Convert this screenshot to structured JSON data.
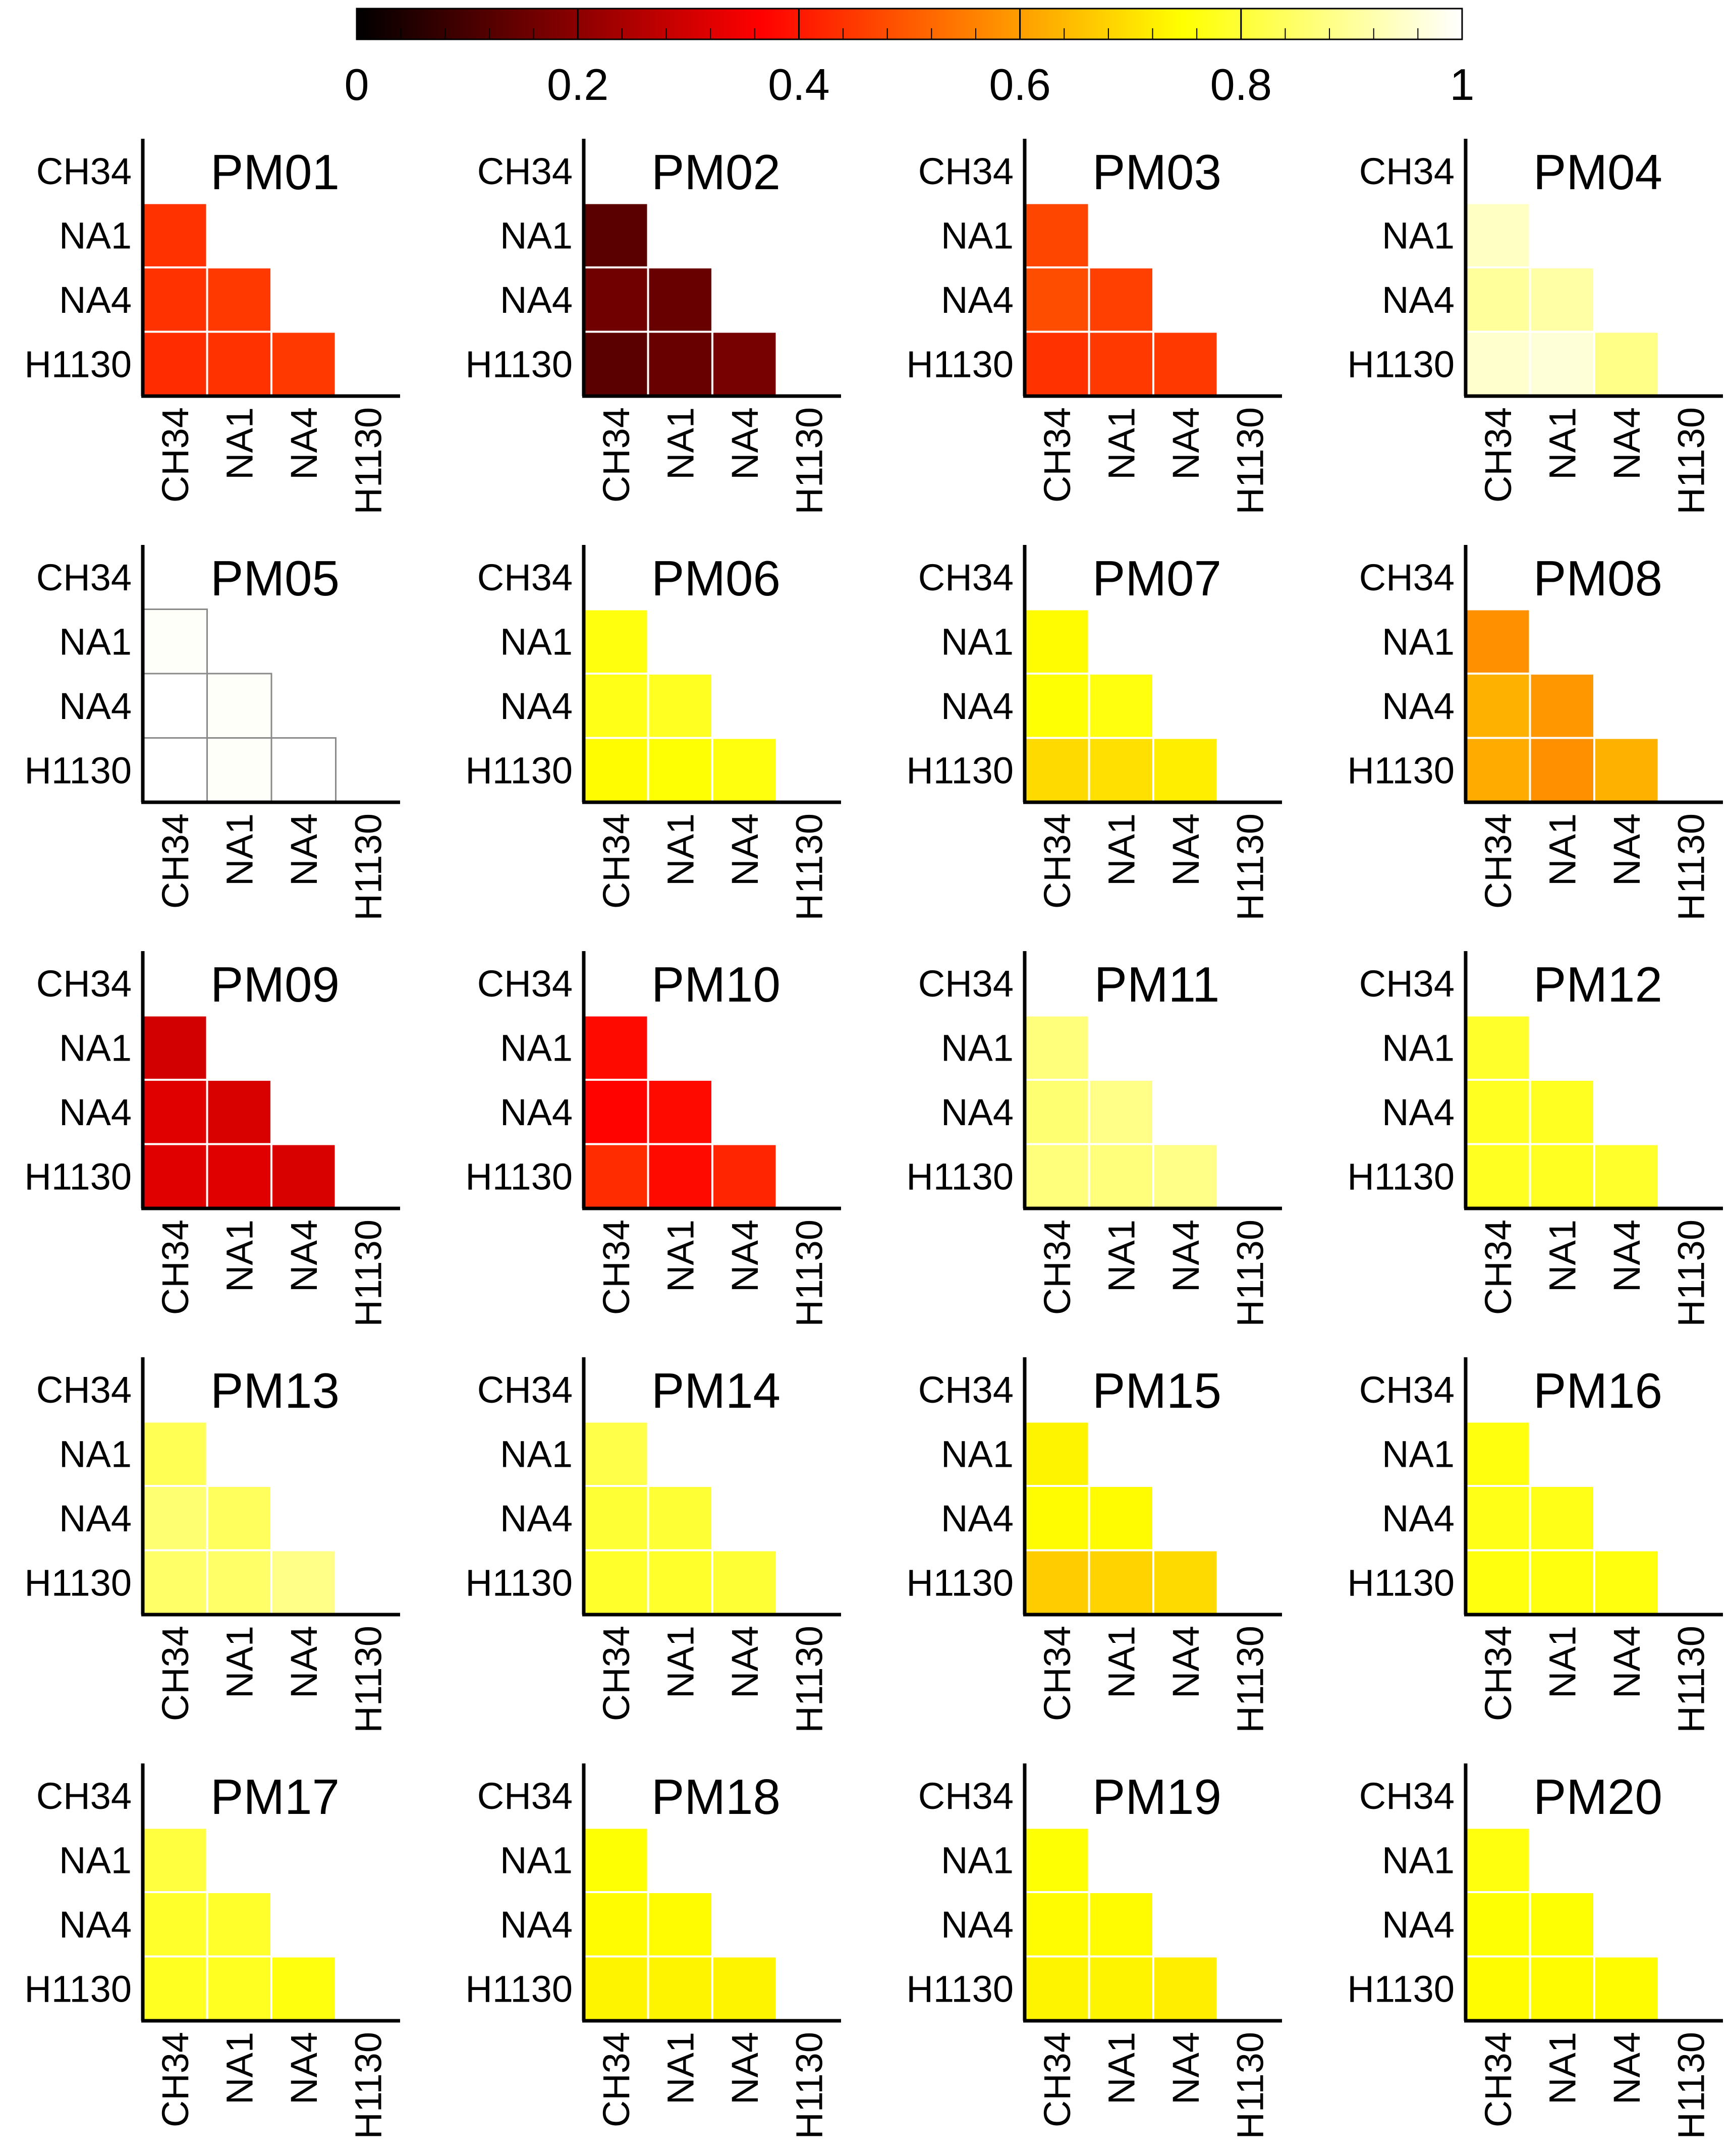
{
  "chart_data": {
    "type": "heatmap",
    "layout": "small-multiples grid, 5 rows x 4 columns, lower-triangular heatmaps",
    "colorbar": {
      "colormap": "hot (black - red - orange - yellow - white)",
      "range": [
        0,
        1
      ],
      "tick_labels": [
        "0",
        "0.2",
        "0.4",
        "0.6",
        "0.8",
        "1"
      ],
      "tick_values": [
        0,
        0.2,
        0.4,
        0.6,
        0.8,
        1
      ],
      "placement": "top-center"
    },
    "row_labels": [
      "CH34",
      "NA1",
      "NA4",
      "H1130"
    ],
    "col_labels": [
      "CH34",
      "NA1",
      "NA4",
      "H1130"
    ],
    "cell_order": "rows NA1, NA4, H1130; lower triangle [NA1-CH34], [NA4-CH34, NA4-NA1], [H1130-CH34, H1130-NA1, H1130-NA4]",
    "panels": [
      {
        "title": "PM01",
        "values": [
          [
            0.44
          ],
          [
            0.44,
            0.45
          ],
          [
            0.43,
            0.44,
            0.45
          ]
        ]
      },
      {
        "title": "PM02",
        "values": [
          [
            0.13
          ],
          [
            0.16,
            0.15
          ],
          [
            0.13,
            0.15,
            0.17
          ]
        ]
      },
      {
        "title": "PM03",
        "values": [
          [
            0.47
          ],
          [
            0.48,
            0.46
          ],
          [
            0.44,
            0.45,
            0.45
          ]
        ]
      },
      {
        "title": "PM04",
        "values": [
          [
            0.94
          ],
          [
            0.9,
            0.91
          ],
          [
            0.95,
            0.96,
            0.88
          ]
        ]
      },
      {
        "title": "PM05",
        "values": [
          [
            0.995
          ],
          [
            1.0,
            0.995
          ],
          [
            1.0,
            0.995,
            1.0
          ]
        ]
      },
      {
        "title": "PM06",
        "values": [
          [
            0.76
          ],
          [
            0.77,
            0.78
          ],
          [
            0.74,
            0.75,
            0.76
          ]
        ]
      },
      {
        "title": "PM07",
        "values": [
          [
            0.74
          ],
          [
            0.75,
            0.76
          ],
          [
            0.69,
            0.7,
            0.72
          ]
        ]
      },
      {
        "title": "PM08",
        "values": [
          [
            0.58
          ],
          [
            0.63,
            0.59
          ],
          [
            0.62,
            0.58,
            0.63
          ]
        ]
      },
      {
        "title": "PM09",
        "values": [
          [
            0.3
          ],
          [
            0.32,
            0.31
          ],
          [
            0.32,
            0.32,
            0.31
          ]
        ]
      },
      {
        "title": "PM10",
        "values": [
          [
            0.38
          ],
          [
            0.37,
            0.38
          ],
          [
            0.43,
            0.38,
            0.42
          ]
        ]
      },
      {
        "title": "PM11",
        "values": [
          [
            0.87
          ],
          [
            0.86,
            0.88
          ],
          [
            0.87,
            0.87,
            0.88
          ]
        ]
      },
      {
        "title": "PM12",
        "values": [
          [
            0.79
          ],
          [
            0.78,
            0.78
          ],
          [
            0.78,
            0.78,
            0.79
          ]
        ]
      },
      {
        "title": "PM13",
        "values": [
          [
            0.83
          ],
          [
            0.86,
            0.84
          ],
          [
            0.85,
            0.85,
            0.88
          ]
        ]
      },
      {
        "title": "PM14",
        "values": [
          [
            0.82
          ],
          [
            0.8,
            0.8
          ],
          [
            0.79,
            0.79,
            0.8
          ]
        ]
      },
      {
        "title": "PM15",
        "values": [
          [
            0.73
          ],
          [
            0.74,
            0.74
          ],
          [
            0.67,
            0.68,
            0.69
          ]
        ]
      },
      {
        "title": "PM16",
        "values": [
          [
            0.76
          ],
          [
            0.77,
            0.77
          ],
          [
            0.76,
            0.76,
            0.76
          ]
        ]
      },
      {
        "title": "PM17",
        "values": [
          [
            0.81
          ],
          [
            0.79,
            0.79
          ],
          [
            0.78,
            0.78,
            0.76
          ]
        ]
      },
      {
        "title": "PM18",
        "values": [
          [
            0.75
          ],
          [
            0.74,
            0.74
          ],
          [
            0.73,
            0.73,
            0.73
          ]
        ]
      },
      {
        "title": "PM19",
        "values": [
          [
            0.75
          ],
          [
            0.74,
            0.74
          ],
          [
            0.73,
            0.73,
            0.72
          ]
        ]
      },
      {
        "title": "PM20",
        "values": [
          [
            0.76
          ],
          [
            0.75,
            0.75
          ],
          [
            0.74,
            0.74,
            0.74
          ]
        ]
      }
    ]
  }
}
